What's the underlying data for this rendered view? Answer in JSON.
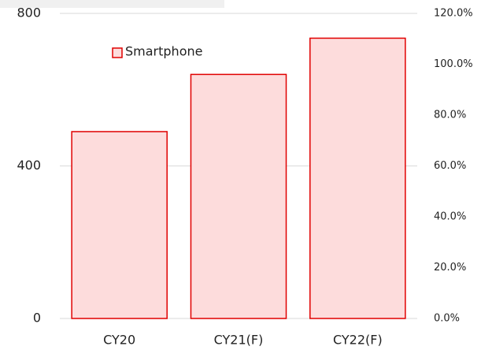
{
  "chart_data": {
    "type": "bar",
    "categories": [
      "CY20",
      "CY21(F)",
      "CY22(F)"
    ],
    "series": [
      {
        "name": "Smartphone",
        "color": "#e00000",
        "fill": "#fddcdc",
        "values": [
          490,
          640,
          735
        ]
      }
    ],
    "ylim": [
      0,
      800
    ],
    "yticks": [
      0,
      400,
      800
    ],
    "y2lim": [
      0,
      120
    ],
    "y2ticks": [
      {
        "value": 0,
        "label": "0.0%"
      },
      {
        "value": 20,
        "label": "20.0%"
      },
      {
        "value": 40,
        "label": "40.0%"
      },
      {
        "value": 60,
        "label": "60.0%"
      },
      {
        "value": 80,
        "label": "80.0%"
      },
      {
        "value": 100,
        "label": "100.0%"
      },
      {
        "value": 120,
        "label": "120.0%"
      }
    ],
    "grid": true,
    "legend": "upper left"
  }
}
